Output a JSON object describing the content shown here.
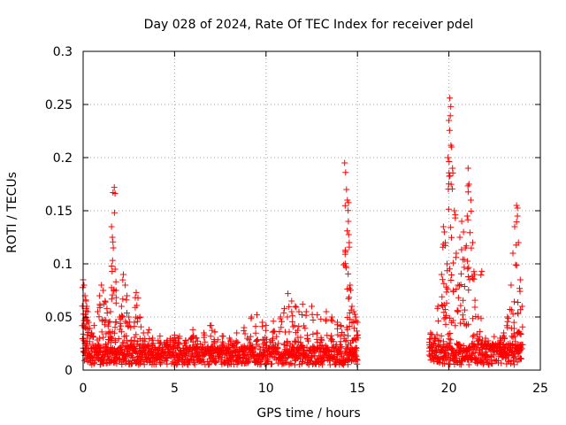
{
  "chart_data": {
    "type": "scatter",
    "title": "Day 028 of 2024, Rate Of TEC Index for receiver pdel",
    "xlabel": "GPS time / hours",
    "ylabel": "ROTI / TECUs",
    "xlim": [
      0,
      25
    ],
    "ylim": [
      0,
      0.3
    ],
    "xticks": [
      0,
      5,
      10,
      15,
      20,
      25
    ],
    "yticks": [
      0,
      0.05,
      0.1,
      0.15,
      0.2,
      0.25,
      0.3
    ],
    "xtick_labels": [
      "0",
      "5",
      "10",
      "15",
      "20",
      "25"
    ],
    "ytick_labels": [
      "0",
      "0.05",
      "0.1",
      "0.15",
      "0.2",
      "0.25",
      "0.3"
    ],
    "grid": true,
    "marker": "+",
    "color": "#ff0000",
    "series": [
      {
        "name": "ROTI",
        "points": [
          [
            0.0,
            0.085
          ],
          [
            0.05,
            0.08
          ],
          [
            0.1,
            0.07
          ],
          [
            0.15,
            0.065
          ],
          [
            0.2,
            0.06
          ],
          [
            0.25,
            0.055
          ],
          [
            0.3,
            0.045
          ],
          [
            0.45,
            0.035
          ],
          [
            0.6,
            0.042
          ],
          [
            0.8,
            0.055
          ],
          [
            0.9,
            0.07
          ],
          [
            1.0,
            0.08
          ],
          [
            1.1,
            0.075
          ],
          [
            1.2,
            0.065
          ],
          [
            1.3,
            0.058
          ],
          [
            1.4,
            0.045
          ],
          [
            1.5,
            0.055
          ],
          [
            1.55,
            0.135
          ],
          [
            1.6,
            0.125
          ],
          [
            1.65,
            0.115
          ],
          [
            1.7,
            0.172
          ],
          [
            1.75,
            0.095
          ],
          [
            1.8,
            0.075
          ],
          [
            2.0,
            0.05
          ],
          [
            2.1,
            0.06
          ],
          [
            2.2,
            0.09
          ],
          [
            2.3,
            0.08
          ],
          [
            2.4,
            0.07
          ],
          [
            2.5,
            0.05
          ],
          [
            2.6,
            0.04
          ],
          [
            2.8,
            0.045
          ],
          [
            2.9,
            0.073
          ],
          [
            3.0,
            0.068
          ],
          [
            3.1,
            0.05
          ],
          [
            3.3,
            0.035
          ],
          [
            3.6,
            0.038
          ],
          [
            3.8,
            0.03
          ],
          [
            4.2,
            0.032
          ],
          [
            4.6,
            0.028
          ],
          [
            5.0,
            0.033
          ],
          [
            5.2,
            0.03
          ],
          [
            5.6,
            0.028
          ],
          [
            6.0,
            0.038
          ],
          [
            6.2,
            0.03
          ],
          [
            6.6,
            0.035
          ],
          [
            7.0,
            0.042
          ],
          [
            7.2,
            0.036
          ],
          [
            7.6,
            0.032
          ],
          [
            8.0,
            0.03
          ],
          [
            8.4,
            0.035
          ],
          [
            8.8,
            0.04
          ],
          [
            9.2,
            0.05
          ],
          [
            9.5,
            0.052
          ],
          [
            9.8,
            0.045
          ],
          [
            10.0,
            0.042
          ],
          [
            10.4,
            0.046
          ],
          [
            10.8,
            0.05
          ],
          [
            11.0,
            0.058
          ],
          [
            11.2,
            0.072
          ],
          [
            11.4,
            0.065
          ],
          [
            11.6,
            0.06
          ],
          [
            11.8,
            0.055
          ],
          [
            12.0,
            0.062
          ],
          [
            12.2,
            0.055
          ],
          [
            12.5,
            0.06
          ],
          [
            12.8,
            0.052
          ],
          [
            13.0,
            0.048
          ],
          [
            13.3,
            0.055
          ],
          [
            13.6,
            0.05
          ],
          [
            13.9,
            0.045
          ],
          [
            14.1,
            0.042
          ],
          [
            14.3,
            0.195
          ],
          [
            14.35,
            0.186
          ],
          [
            14.4,
            0.17
          ],
          [
            14.45,
            0.16
          ],
          [
            14.5,
            0.14
          ],
          [
            14.55,
            0.12
          ],
          [
            14.6,
            0.08
          ],
          [
            14.7,
            0.06
          ],
          [
            14.8,
            0.055
          ],
          [
            14.9,
            0.05
          ],
          [
            15.0,
            0.045
          ],
          [
            19.0,
            0.035
          ],
          [
            19.2,
            0.03
          ],
          [
            19.4,
            0.06
          ],
          [
            19.6,
            0.09
          ],
          [
            19.7,
            0.135
          ],
          [
            19.75,
            0.13
          ],
          [
            19.8,
            0.12
          ],
          [
            19.9,
            0.1
          ],
          [
            19.95,
            0.2
          ],
          [
            20.0,
            0.235
          ],
          [
            20.05,
            0.256
          ],
          [
            20.1,
            0.248
          ],
          [
            20.15,
            0.21
          ],
          [
            20.2,
            0.19
          ],
          [
            20.3,
            0.15
          ],
          [
            20.4,
            0.11
          ],
          [
            20.5,
            0.08
          ],
          [
            20.6,
            0.125
          ],
          [
            20.7,
            0.14
          ],
          [
            20.8,
            0.13
          ],
          [
            20.9,
            0.115
          ],
          [
            21.0,
            0.145
          ],
          [
            21.05,
            0.19
          ],
          [
            21.1,
            0.175
          ],
          [
            21.2,
            0.16
          ],
          [
            21.3,
            0.12
          ],
          [
            21.4,
            0.09
          ],
          [
            21.6,
            0.05
          ],
          [
            21.8,
            0.093
          ],
          [
            22.0,
            0.03
          ],
          [
            22.4,
            0.025
          ],
          [
            22.8,
            0.03
          ],
          [
            23.0,
            0.035
          ],
          [
            23.2,
            0.05
          ],
          [
            23.4,
            0.08
          ],
          [
            23.5,
            0.11
          ],
          [
            23.6,
            0.135
          ],
          [
            23.7,
            0.155
          ],
          [
            23.75,
            0.145
          ],
          [
            23.8,
            0.12
          ],
          [
            23.9,
            0.085
          ],
          [
            24.0,
            0.06
          ]
        ]
      }
    ],
    "dense_band": [
      {
        "x0": 0.0,
        "x1": 15.0,
        "base_low": 0.005,
        "base_high": 0.022
      },
      {
        "x0": 18.9,
        "x1": 24.0,
        "base_low": 0.005,
        "base_high": 0.025
      }
    ]
  }
}
